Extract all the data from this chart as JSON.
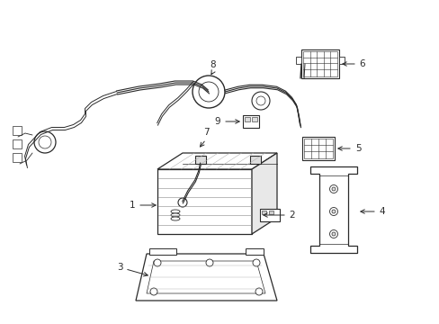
{
  "background_color": "#ffffff",
  "line_color": "#2a2a2a",
  "line_width": 0.9,
  "label_fontsize": 7.5,
  "fig_w": 4.89,
  "fig_h": 3.6,
  "dpi": 100
}
